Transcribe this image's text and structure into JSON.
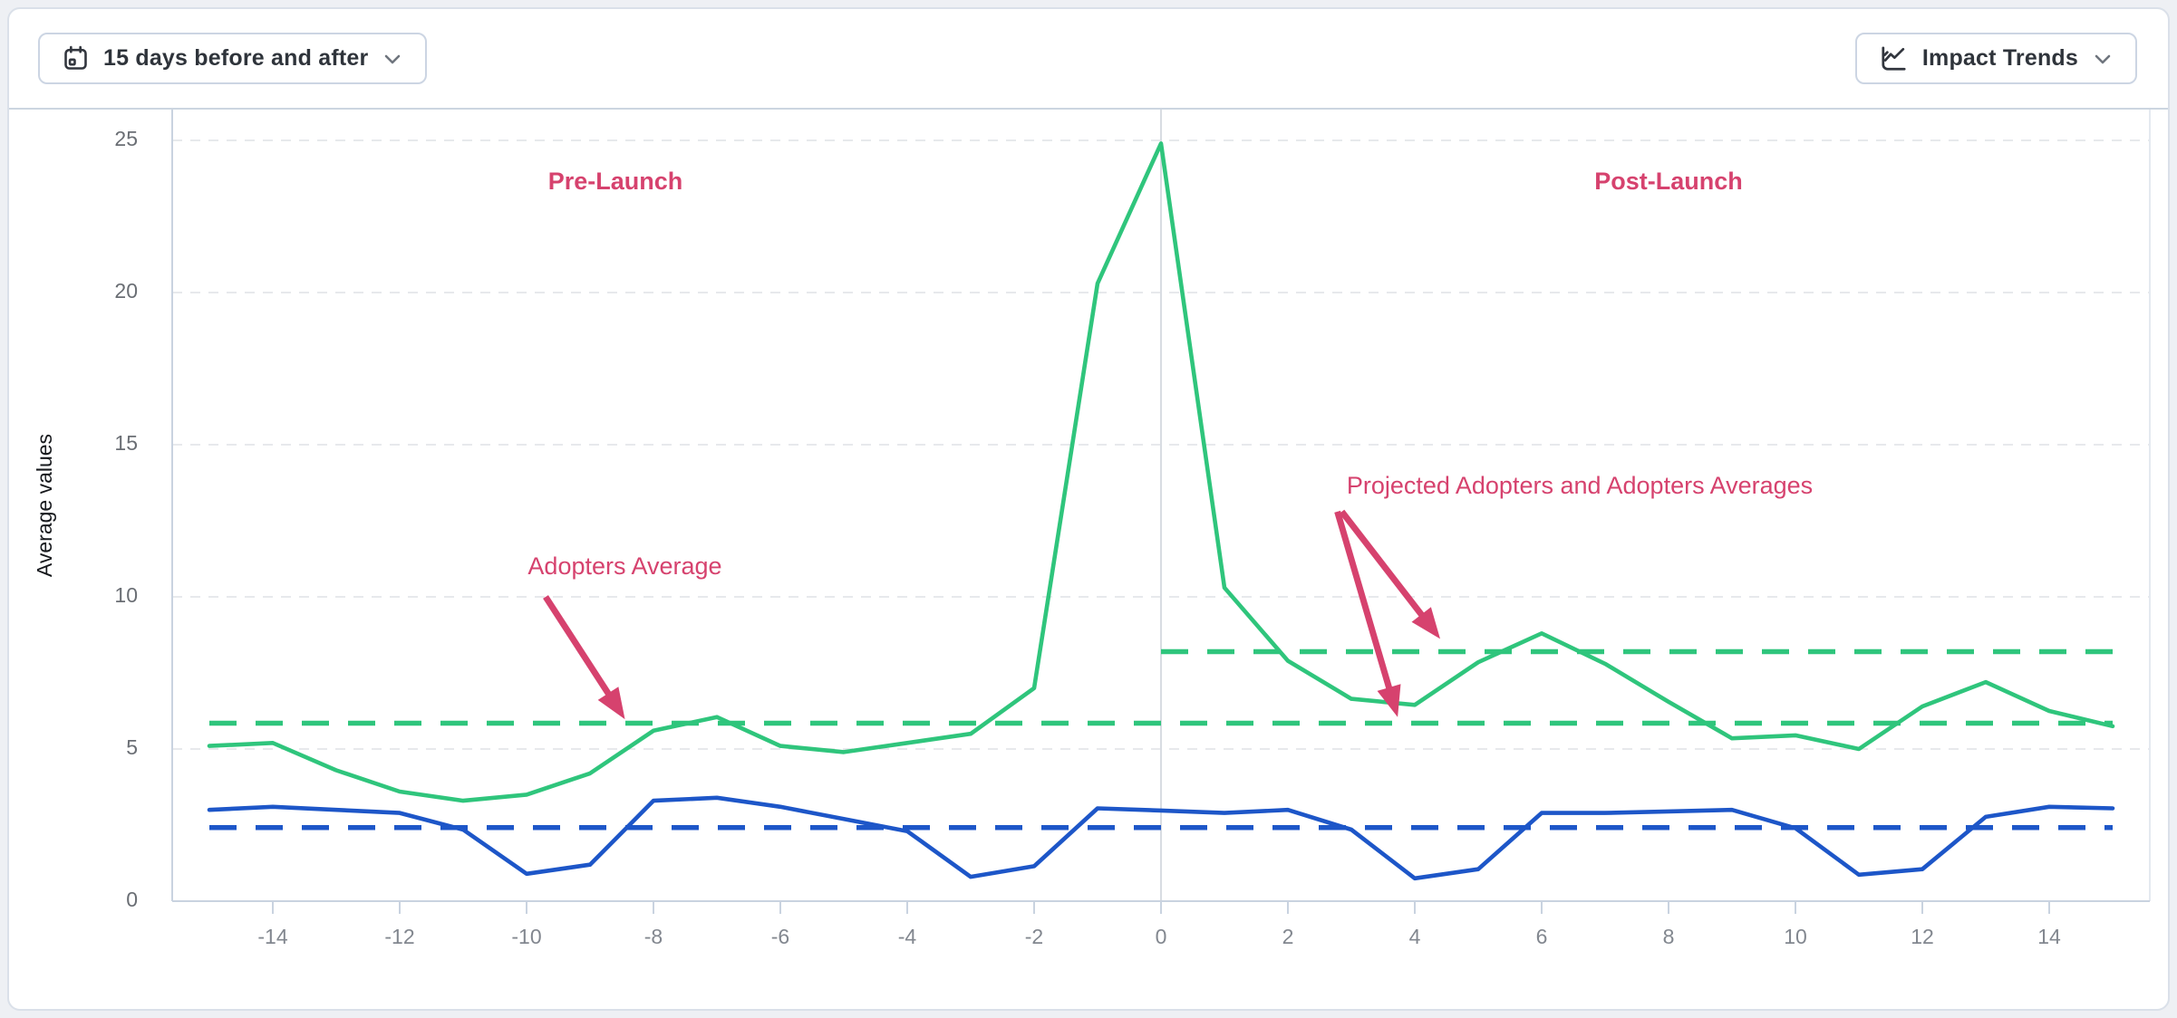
{
  "header": {
    "date_range_button": {
      "label": "15 days before and after",
      "icon": "calendar-icon"
    },
    "trends_button": {
      "label": "Impact Trends",
      "icon": "trend-chart-icon"
    }
  },
  "colors": {
    "adopters_green": "#2fc57c",
    "projected_blue": "#1d56c8",
    "annotation_pink": "#d6426e",
    "grid": "#e7e9ec",
    "axis": "#c9d3e0",
    "tick_label": "#82878f",
    "launch_line": "#d8dce2"
  },
  "chart_data": {
    "type": "line",
    "title": "",
    "xlabel": "",
    "ylabel": "Average values",
    "xlim": [
      -15,
      15
    ],
    "ylim": [
      0,
      25.5
    ],
    "x_ticks": [
      -14,
      -12,
      -10,
      -8,
      -6,
      -4,
      -2,
      0,
      2,
      4,
      6,
      8,
      10,
      12,
      14
    ],
    "y_ticks": [
      0,
      5,
      10,
      15,
      20,
      25
    ],
    "grid": "horizontal-dashed",
    "legend": "none",
    "launch_line_x": 0,
    "x": [
      -15,
      -14,
      -13,
      -12,
      -11,
      -10,
      -9,
      -8,
      -7,
      -6,
      -5,
      -4,
      -3,
      -2,
      -1,
      0,
      1,
      2,
      3,
      4,
      5,
      6,
      7,
      8,
      9,
      10,
      11,
      12,
      13,
      14,
      15
    ],
    "series": [
      {
        "name": "Adopters",
        "color": "#2fc57c",
        "style": "solid",
        "values": [
          5.1,
          5.2,
          4.3,
          3.6,
          3.3,
          3.5,
          4.2,
          5.6,
          6.05,
          5.1,
          4.9,
          5.2,
          5.5,
          7.0,
          20.3,
          24.9,
          10.3,
          7.9,
          6.65,
          6.45,
          7.85,
          8.8,
          7.8,
          6.55,
          5.35,
          5.45,
          5.0,
          6.4,
          7.2,
          6.25,
          5.75
        ]
      },
      {
        "name": "Projected Adopters",
        "color": "#1d56c8",
        "style": "solid",
        "values": [
          3.0,
          3.1,
          3.0,
          2.9,
          2.35,
          0.9,
          1.2,
          3.3,
          3.4,
          3.1,
          2.7,
          2.3,
          0.8,
          1.15,
          3.05,
          2.98,
          2.9,
          3.0,
          2.35,
          0.75,
          1.05,
          2.9,
          2.9,
          2.95,
          3.0,
          2.4,
          0.87,
          1.05,
          2.77,
          3.1,
          3.05
        ]
      },
      {
        "name": "Adopters Average",
        "color": "#2fc57c",
        "style": "dashed",
        "value": 5.85,
        "span": [
          -15,
          15
        ]
      },
      {
        "name": "Post-Launch Adopters Average",
        "color": "#2fc57c",
        "style": "dashed",
        "value": 8.2,
        "span": [
          0,
          15
        ]
      },
      {
        "name": "Projected Adopters Average",
        "color": "#1d56c8",
        "style": "dashed",
        "value": 2.42,
        "span": [
          -15,
          15
        ]
      }
    ],
    "annotations": [
      {
        "id": "pre-launch-label",
        "text": "Pre-Launch",
        "x": -8.6,
        "y": 23.6,
        "bold": true
      },
      {
        "id": "post-launch-label",
        "text": "Post-Launch",
        "x": 8.0,
        "y": 23.6,
        "bold": true
      },
      {
        "id": "adopters-average-label",
        "text": "Adopters Average",
        "x": -8.45,
        "y": 10.95,
        "bold": false,
        "arrows": [
          {
            "from": [
              -9.7,
              10.0
            ],
            "to": [
              -8.45,
              5.98
            ]
          }
        ]
      },
      {
        "id": "projected-averages-label",
        "text": "Projected Adopters and Adopters Averages",
        "x": 6.6,
        "y": 13.6,
        "bold": false,
        "arrows": [
          {
            "from": [
              2.85,
              12.8
            ],
            "to": [
              4.4,
              8.62
            ]
          },
          {
            "from": [
              2.78,
              12.8
            ],
            "to": [
              3.73,
              6.05
            ]
          }
        ]
      }
    ]
  }
}
